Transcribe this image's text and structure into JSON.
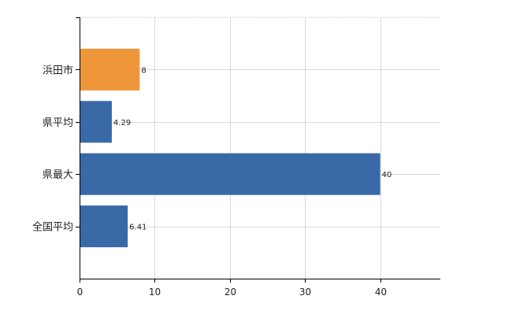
{
  "chart_data": {
    "type": "bar",
    "orientation": "horizontal",
    "categories": [
      "浜田市",
      "県平均",
      "県最大",
      "全国平均"
    ],
    "values": [
      8,
      4.29,
      40,
      6.41
    ],
    "value_labels": [
      "8",
      "4.29",
      "40",
      "6.41"
    ],
    "bar_colors": [
      "#f0963a",
      "#3a69a7",
      "#3a69a7",
      "#3a69a7"
    ],
    "xlim": [
      0,
      48
    ],
    "xticks": [
      0,
      10,
      20,
      30,
      40
    ],
    "xtick_labels": [
      "0",
      "10",
      "20",
      "30",
      "40"
    ],
    "grid": true,
    "title": "",
    "xlabel": "",
    "ylabel": ""
  }
}
